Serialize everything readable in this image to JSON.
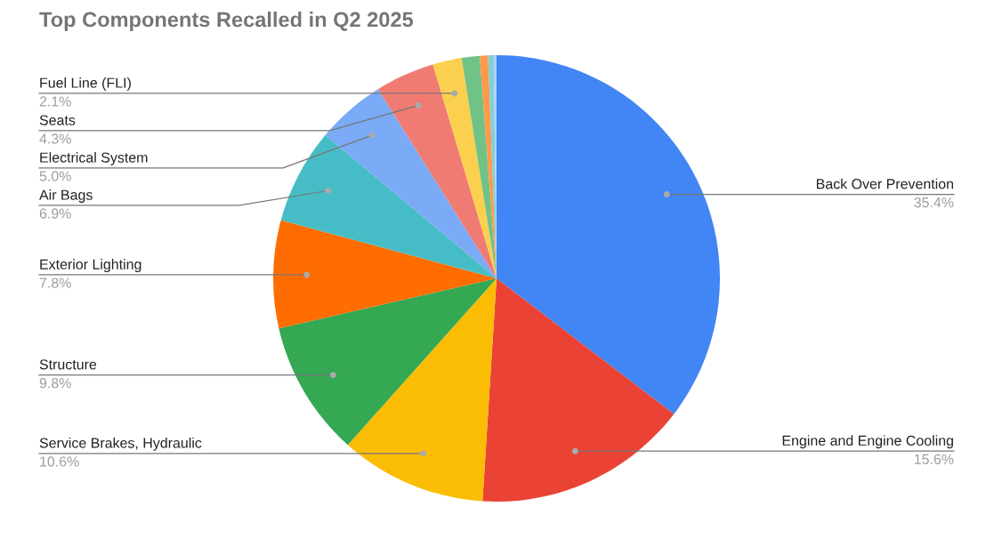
{
  "chart_data": {
    "type": "pie",
    "title": "Top Components Recalled in Q2 2025",
    "categories": [
      "Back Over Prevention",
      "Engine and Engine Cooling",
      "Service Brakes, Hydraulic",
      "Structure",
      "Exterior Lighting",
      "Air Bags",
      "Electrical System",
      "Seats",
      "Fuel Line (FLI)",
      null,
      null,
      null,
      null
    ],
    "values": [
      35.4,
      15.6,
      10.6,
      9.8,
      7.8,
      6.9,
      5.0,
      4.3,
      2.1,
      1.3,
      0.6,
      0.4,
      0.2
    ],
    "value_labels": [
      "35.4%",
      "15.6%",
      "10.6%",
      "9.8%",
      "7.8%",
      "6.9%",
      "5.0%",
      "4.3%",
      "2.1%",
      null,
      null,
      null,
      null
    ],
    "colors": [
      "#4285f4",
      "#ea4335",
      "#fbbc04",
      "#34a853",
      "#ff6d01",
      "#46bdc6",
      "#7baaf7",
      "#f07b72",
      "#fcd04f",
      "#71c287",
      "#ff994d",
      "#7ed1d7",
      "#b3cefb"
    ]
  }
}
